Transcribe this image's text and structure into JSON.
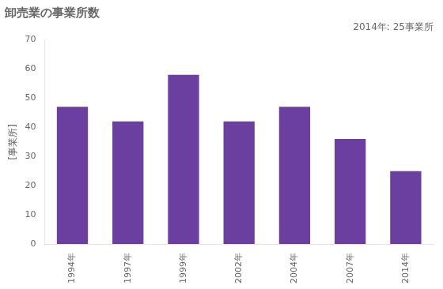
{
  "chart_data": {
    "type": "bar",
    "title": "卸売業の事業所数",
    "annotation": "2014年: 25事業所",
    "ylabel": "[事業所]",
    "categories": [
      "1994年",
      "1997年",
      "1999年",
      "2002年",
      "2004年",
      "2007年",
      "2014年"
    ],
    "values": [
      47,
      42,
      58,
      42,
      47,
      36,
      25
    ],
    "color": "#6B3FA0",
    "ylim": [
      0,
      70
    ],
    "yticks": [
      0,
      10,
      20,
      30,
      40,
      50,
      60,
      70
    ],
    "grid": false
  }
}
